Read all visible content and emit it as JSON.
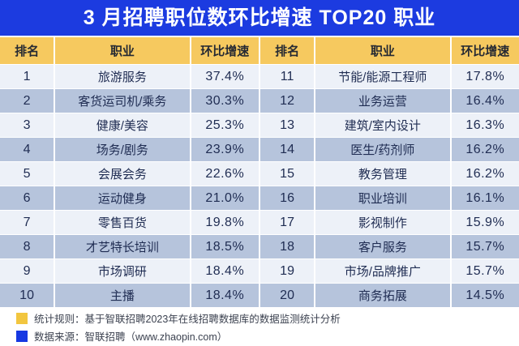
{
  "title": "3 月招聘职位数环比增速 TOP20 职业",
  "header": {
    "rank": "排名",
    "occupation": "职业",
    "rate": "环比增速"
  },
  "chart_data": {
    "type": "table",
    "title": "3 月招聘职位数环比增速 TOP20 职业",
    "columns": [
      "排名",
      "职业",
      "环比增速"
    ],
    "rows": [
      {
        "rank": "1",
        "occupation": "旅游服务",
        "rate": "37.4%"
      },
      {
        "rank": "2",
        "occupation": "客货运司机/乘务",
        "rate": "30.3%"
      },
      {
        "rank": "3",
        "occupation": "健康/美容",
        "rate": "25.3%"
      },
      {
        "rank": "4",
        "occupation": "场务/剧务",
        "rate": "23.9%"
      },
      {
        "rank": "5",
        "occupation": "会展会务",
        "rate": "22.6%"
      },
      {
        "rank": "6",
        "occupation": "运动健身",
        "rate": "21.0%"
      },
      {
        "rank": "7",
        "occupation": "零售百货",
        "rate": "19.8%"
      },
      {
        "rank": "8",
        "occupation": "才艺特长培训",
        "rate": "18.5%"
      },
      {
        "rank": "9",
        "occupation": "市场调研",
        "rate": "18.4%"
      },
      {
        "rank": "10",
        "occupation": "主播",
        "rate": "18.4%"
      },
      {
        "rank": "11",
        "occupation": "节能/能源工程师",
        "rate": "17.8%"
      },
      {
        "rank": "12",
        "occupation": "业务运营",
        "rate": "16.4%"
      },
      {
        "rank": "13",
        "occupation": "建筑/室内设计",
        "rate": "16.3%"
      },
      {
        "rank": "14",
        "occupation": "医生/药剂师",
        "rate": "16.2%"
      },
      {
        "rank": "15",
        "occupation": "教务管理",
        "rate": "16.2%"
      },
      {
        "rank": "16",
        "occupation": "职业培训",
        "rate": "16.1%"
      },
      {
        "rank": "17",
        "occupation": "影视制作",
        "rate": "15.9%"
      },
      {
        "rank": "18",
        "occupation": "客户服务",
        "rate": "15.7%"
      },
      {
        "rank": "19",
        "occupation": "市场/品牌推广",
        "rate": "15.7%"
      },
      {
        "rank": "20",
        "occupation": "商务拓展",
        "rate": "14.5%"
      }
    ]
  },
  "footer": {
    "notes": [
      {
        "icon": "yellow-swatch",
        "text": "统计规则：基于智联招聘2023年在线招聘数据库的数据监测统计分析"
      },
      {
        "icon": "blue-swatch",
        "text": "数据来源：智联招聘（www.zhaopin.com）"
      }
    ]
  },
  "colors": {
    "title_bar_blue": "#1c3be0",
    "header_yellow": "#f6c95f",
    "row_stripe_blue": "#b6c4dc",
    "row_stripe_light": "#edf1f8",
    "table_text_navy": "#1f2c52",
    "legend_yellow": "#f2c63f",
    "legend_blue": "#1638e2"
  }
}
